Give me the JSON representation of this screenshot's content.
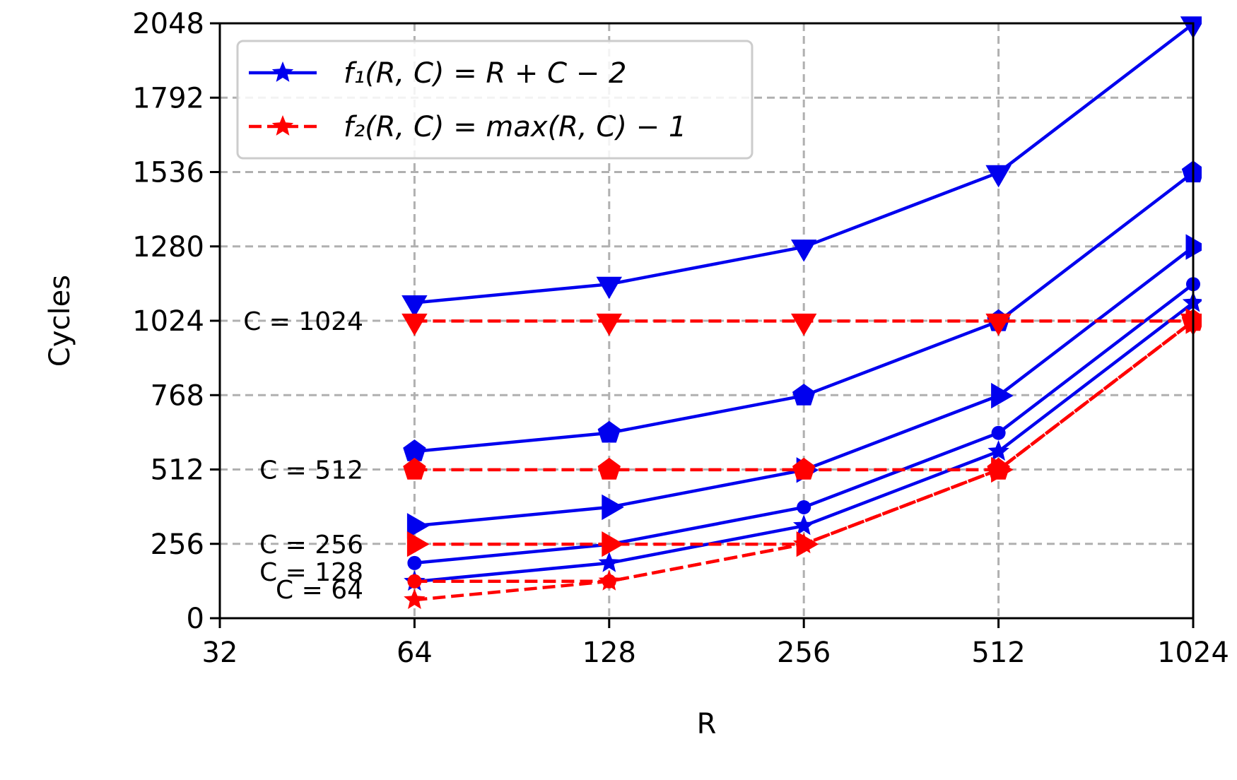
{
  "chart_data": {
    "type": "line",
    "xlabel": "R",
    "ylabel": "Cycles",
    "x_scale": "log2",
    "xlim": [
      32,
      1024
    ],
    "ylim": [
      0,
      2048
    ],
    "x_ticks": [
      "32",
      "64",
      "128",
      "256",
      "512",
      "1024"
    ],
    "x_tick_values": [
      32,
      64,
      128,
      256,
      512,
      1024
    ],
    "y_ticks": [
      "0",
      "256",
      "512",
      "768",
      "1024",
      "1280",
      "1536",
      "1792",
      "2048"
    ],
    "y_tick_values": [
      0,
      256,
      512,
      768,
      1024,
      1280,
      1536,
      1792,
      2048
    ],
    "grid": true,
    "legend_position": "top-left",
    "legend": [
      {
        "label": "f₁(R, C) = R + C − 2",
        "color": "#0000ee",
        "style": "solid",
        "marker": "star"
      },
      {
        "label": "f₂(R, C) = max(R, C) − 1",
        "color": "#ff0000",
        "style": "dashed",
        "marker": "star"
      }
    ],
    "x": [
      64,
      128,
      256,
      512,
      1024
    ],
    "series": [
      {
        "name": "f1 C=1024",
        "function": "f1",
        "C": 1024,
        "color": "#0000ee",
        "style": "solid",
        "marker": "triangle-down",
        "values": [
          1086,
          1150,
          1278,
          1534,
          2046
        ]
      },
      {
        "name": "f1 C=512",
        "function": "f1",
        "C": 512,
        "color": "#0000ee",
        "style": "solid",
        "marker": "pentagon",
        "values": [
          574,
          638,
          766,
          1022,
          1534
        ]
      },
      {
        "name": "f1 C=256",
        "function": "f1",
        "C": 256,
        "color": "#0000ee",
        "style": "solid",
        "marker": "triangle-right",
        "values": [
          318,
          382,
          510,
          766,
          1278
        ]
      },
      {
        "name": "f1 C=128",
        "function": "f1",
        "C": 128,
        "color": "#0000ee",
        "style": "solid",
        "marker": "circle",
        "values": [
          190,
          254,
          382,
          638,
          1150
        ]
      },
      {
        "name": "f1 C=64",
        "function": "f1",
        "C": 64,
        "color": "#0000ee",
        "style": "solid",
        "marker": "star",
        "values": [
          126,
          190,
          318,
          574,
          1086
        ]
      },
      {
        "name": "f2 C=1024",
        "function": "f2",
        "C": 1024,
        "color": "#ff0000",
        "style": "dashed",
        "marker": "triangle-down",
        "values": [
          1023,
          1023,
          1023,
          1023,
          1023
        ]
      },
      {
        "name": "f2 C=512",
        "function": "f2",
        "C": 512,
        "color": "#ff0000",
        "style": "dashed",
        "marker": "pentagon",
        "values": [
          511,
          511,
          511,
          511,
          1023
        ]
      },
      {
        "name": "f2 C=256",
        "function": "f2",
        "C": 256,
        "color": "#ff0000",
        "style": "dashed",
        "marker": "triangle-right",
        "values": [
          255,
          255,
          255,
          511,
          1023
        ]
      },
      {
        "name": "f2 C=128",
        "function": "f2",
        "C": 128,
        "color": "#ff0000",
        "style": "dashed",
        "marker": "circle",
        "values": [
          127,
          127,
          255,
          511,
          1023
        ]
      },
      {
        "name": "f2 C=64",
        "function": "f2",
        "C": 64,
        "color": "#ff0000",
        "style": "dashed",
        "marker": "star",
        "values": [
          63,
          127,
          255,
          511,
          1023
        ]
      }
    ],
    "annotations": [
      {
        "text": "C = 1024",
        "y": 1024
      },
      {
        "text": "C = 512",
        "y": 512
      },
      {
        "text": "C = 256",
        "y": 256
      },
      {
        "text": "C = 128",
        "y": 160
      },
      {
        "text": "C = 64",
        "y": 100
      }
    ]
  }
}
